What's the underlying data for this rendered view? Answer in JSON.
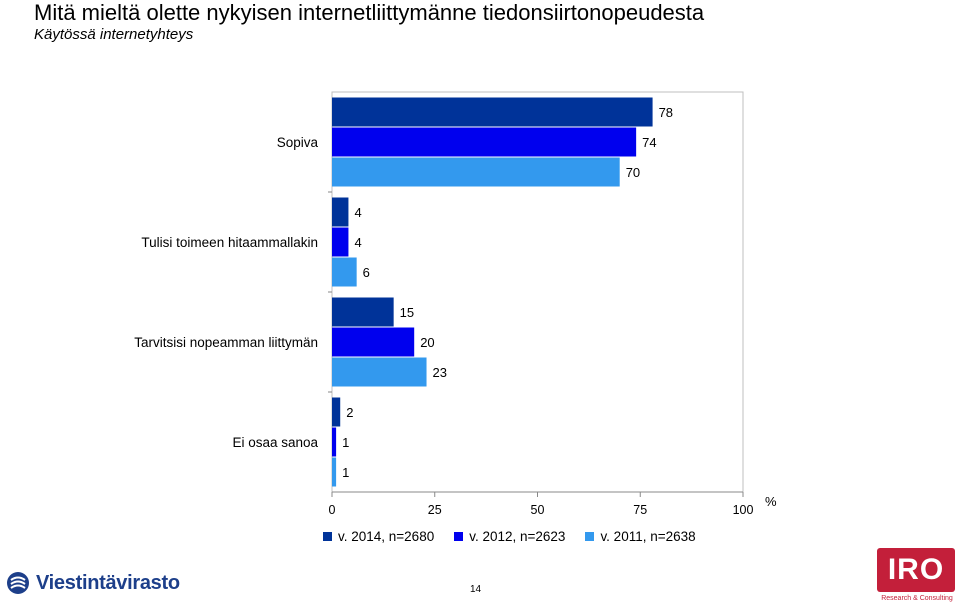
{
  "title": "Mitä mieltä olette nykyisen internetliittymänne tiedonsiirtonopeudesta",
  "subtitle": "Käytössä internetyhteys",
  "chart_data": {
    "type": "bar",
    "orientation": "horizontal",
    "categories": [
      "Sopiva",
      "Tulisi toimeen hitaammallakin",
      "Tarvitsisi nopeamman liittymän",
      "Ei osaa sanoa"
    ],
    "series": [
      {
        "name": "v. 2014, n=2680",
        "values": [
          78,
          4,
          15,
          2
        ],
        "color": "#003399"
      },
      {
        "name": "v. 2012, n=2623",
        "values": [
          74,
          4,
          20,
          1
        ],
        "color": "#0000ee"
      },
      {
        "name": "v. 2011, n=2638",
        "values": [
          70,
          6,
          23,
          1
        ],
        "color": "#3399ee"
      }
    ],
    "xlim": [
      0,
      100
    ],
    "xticks": [
      "0",
      "25",
      "50",
      "75",
      "100"
    ],
    "xunit": "%",
    "legend_position": "bottom",
    "grid": false
  },
  "footer": {
    "left_logo_text": "Viestintävirasto",
    "page_number": "14",
    "right_logo_text": "IRO",
    "right_logo_subtext": "Research & Consulting"
  },
  "colors": {
    "logo_blue": "#1d3f8a",
    "logo_red": "#c31f3a"
  }
}
